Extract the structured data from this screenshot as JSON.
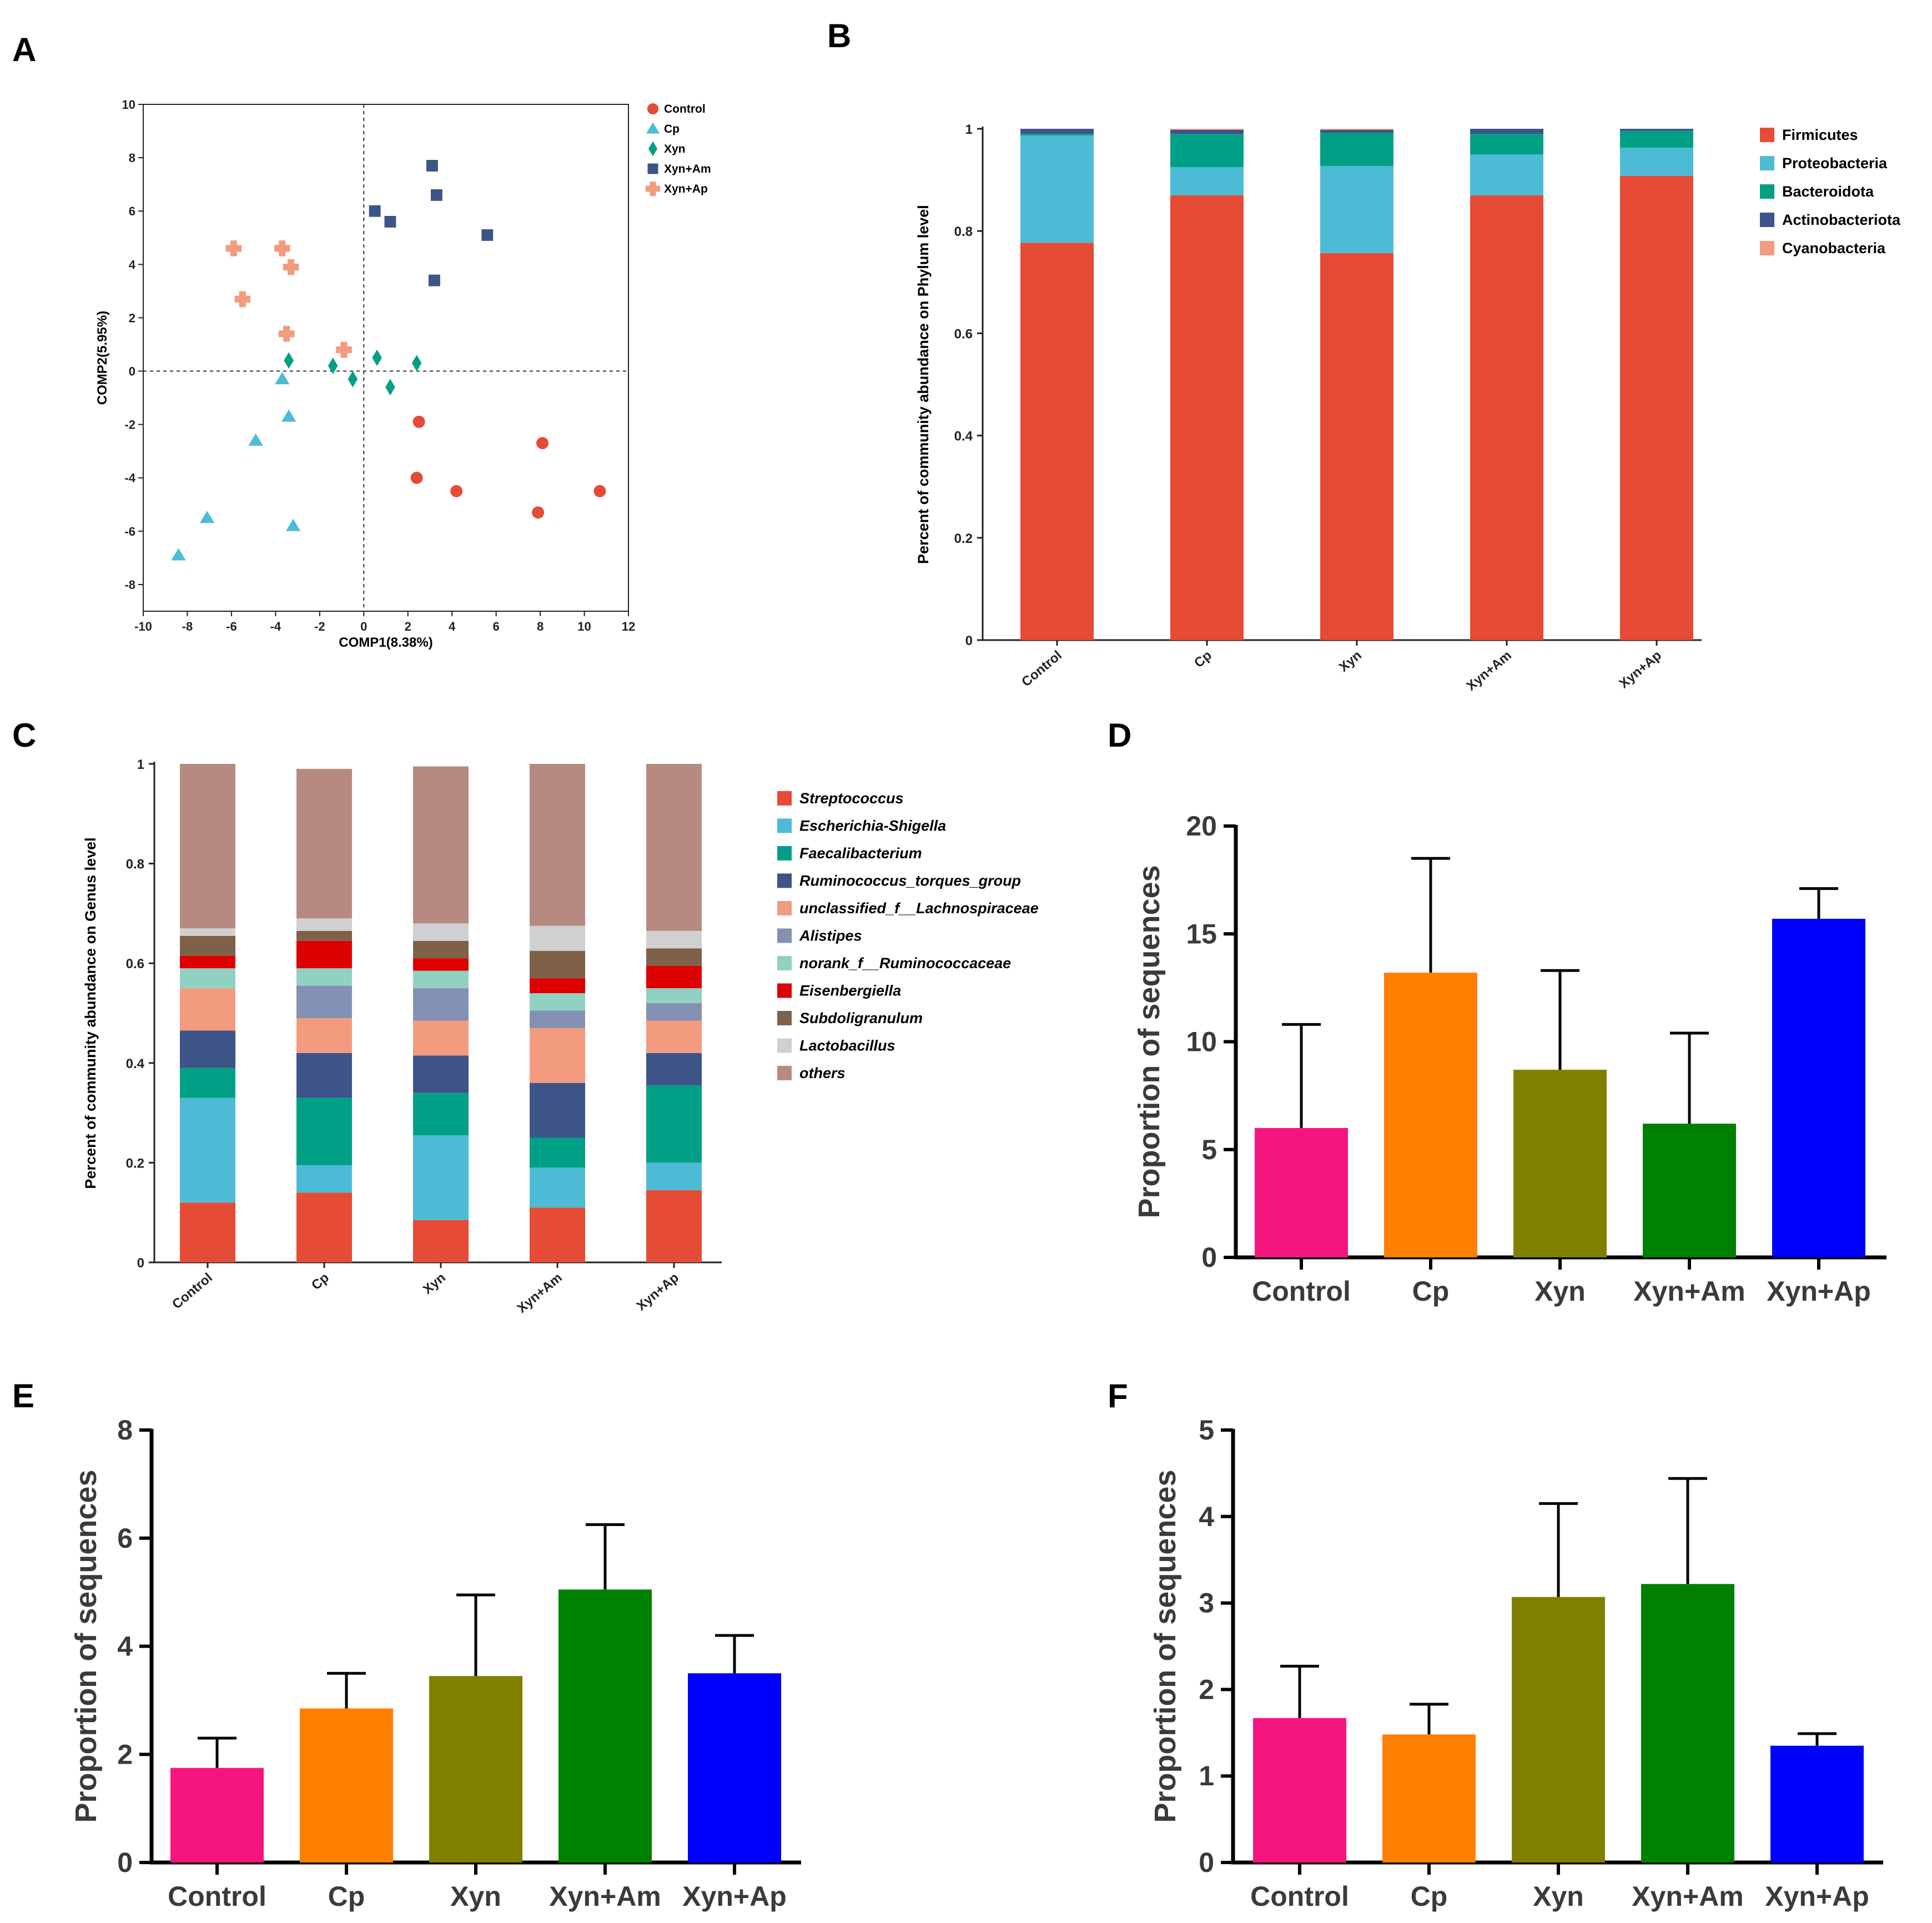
{
  "colors": {
    "control": "#e64b35",
    "cp": "#4dbbd5",
    "xyn": "#00a087",
    "xyn_am": "#3c5488",
    "xyn_ap": "#f39b7f",
    "genus": [
      "#e64b35",
      "#4dbbd5",
      "#00a087",
      "#3c5488",
      "#f39b7f",
      "#8491b4",
      "#91d1c2",
      "#dc0000",
      "#7e6148",
      "#d0d0d0",
      "#b78a81"
    ],
    "bars": [
      "#f5157f",
      "#ff7f00",
      "#808000",
      "#008000",
      "#0000ff"
    ]
  },
  "chart_data": [
    {
      "panel": "A",
      "type": "scatter",
      "xlabel": "COMP1(8.38%)",
      "ylabel": "COMP2(5.95%)",
      "xlim": [
        -10,
        12
      ],
      "ylim": [
        -9,
        10
      ],
      "xticks": [
        -10,
        -8,
        -6,
        -4,
        -2,
        0,
        2,
        4,
        6,
        8,
        10,
        12
      ],
      "yticks": [
        -8,
        -6,
        -4,
        -2,
        0,
        2,
        4,
        6,
        8,
        10
      ],
      "legend_position": "top-right",
      "series": [
        {
          "name": "Control",
          "marker": "circle",
          "x": [
            2.5,
            8.1,
            2.4,
            4.2,
            10.7,
            7.9
          ],
          "y": [
            -1.9,
            -2.7,
            -4.0,
            -4.5,
            -4.5,
            -5.3
          ]
        },
        {
          "name": "Cp",
          "marker": "triangle",
          "x": [
            -3.7,
            -3.4,
            -4.9,
            -7.1,
            -3.2,
            -8.4
          ],
          "y": [
            -0.3,
            -1.7,
            -2.6,
            -5.5,
            -5.8,
            -6.9
          ]
        },
        {
          "name": "Xyn",
          "marker": "diamond",
          "x": [
            -3.4,
            -1.4,
            0.6,
            2.4,
            -0.5,
            1.2
          ],
          "y": [
            0.4,
            0.2,
            0.5,
            0.3,
            -0.3,
            -0.6
          ]
        },
        {
          "name": "Xyn+Am",
          "marker": "square",
          "x": [
            3.1,
            3.3,
            0.5,
            1.2,
            5.6,
            3.2
          ],
          "y": [
            7.7,
            6.6,
            6.0,
            5.6,
            5.1,
            3.4
          ]
        },
        {
          "name": "Xyn+Ap",
          "marker": "cross",
          "x": [
            -5.9,
            -3.7,
            -3.3,
            -5.5,
            -3.5,
            -0.9
          ],
          "y": [
            4.6,
            4.6,
            3.9,
            2.7,
            1.4,
            0.8
          ]
        }
      ]
    },
    {
      "panel": "B",
      "type": "bar",
      "stacked": true,
      "ylabel": "Percent of community abundance on Phylum level",
      "ylim": [
        0,
        1
      ],
      "yticks": [
        0,
        0.2,
        0.4,
        0.6,
        0.8,
        1
      ],
      "categories": [
        "Control",
        "Cp",
        "Xyn",
        "Xyn+Am",
        "Xyn+Ap"
      ],
      "series": [
        {
          "name": "Firmicutes",
          "values": [
            0.777,
            0.87,
            0.757,
            0.87,
            0.908
          ]
        },
        {
          "name": "Proteobacteria",
          "values": [
            0.21,
            0.055,
            0.17,
            0.08,
            0.055
          ]
        },
        {
          "name": "Bacteroidota",
          "values": [
            0.003,
            0.065,
            0.065,
            0.04,
            0.033
          ]
        },
        {
          "name": "Actinobacteriota",
          "values": [
            0.01,
            0.008,
            0.006,
            0.01,
            0.004
          ]
        },
        {
          "name": "Cyanobacteria",
          "values": [
            0.0,
            0.002,
            0.002,
            0.0,
            0.0
          ]
        }
      ]
    },
    {
      "panel": "C",
      "type": "bar",
      "stacked": true,
      "ylabel": "Percent of community abundance on Genus level",
      "ylim": [
        0,
        1
      ],
      "yticks": [
        0,
        0.2,
        0.4,
        0.6,
        0.8,
        1
      ],
      "categories": [
        "Control",
        "Cp",
        "Xyn",
        "Xyn+Am",
        "Xyn+Ap"
      ],
      "series": [
        {
          "name": "Streptococcus",
          "values": [
            0.12,
            0.14,
            0.085,
            0.11,
            0.145
          ]
        },
        {
          "name": "Escherichia-Shigella",
          "values": [
            0.21,
            0.055,
            0.17,
            0.08,
            0.055
          ]
        },
        {
          "name": "Faecalibacterium",
          "values": [
            0.06,
            0.135,
            0.085,
            0.06,
            0.155
          ]
        },
        {
          "name": "Ruminococcus_torques_group",
          "values": [
            0.075,
            0.09,
            0.075,
            0.11,
            0.065
          ]
        },
        {
          "name": "unclassified_f__Lachnospiraceae",
          "values": [
            0.085,
            0.07,
            0.07,
            0.11,
            0.065
          ]
        },
        {
          "name": "Alistipes",
          "values": [
            0.0,
            0.065,
            0.065,
            0.035,
            0.035
          ]
        },
        {
          "name": "norank_f__Ruminococcaceae",
          "values": [
            0.04,
            0.035,
            0.035,
            0.035,
            0.03
          ]
        },
        {
          "name": "Eisenbergiella",
          "values": [
            0.025,
            0.055,
            0.025,
            0.03,
            0.045
          ]
        },
        {
          "name": "Subdoligranulum",
          "values": [
            0.04,
            0.02,
            0.035,
            0.055,
            0.035
          ]
        },
        {
          "name": "Lactobacillus",
          "values": [
            0.015,
            0.025,
            0.035,
            0.05,
            0.035
          ]
        },
        {
          "name": "others",
          "values": [
            0.33,
            0.3,
            0.315,
            0.325,
            0.335
          ]
        }
      ]
    },
    {
      "panel": "D",
      "type": "bar",
      "ylabel": "Proportion of sequences",
      "ylim": [
        0,
        20
      ],
      "yticks": [
        0,
        5,
        10,
        15,
        20
      ],
      "categories": [
        "Control",
        "Cp",
        "Xyn",
        "Xyn+Am",
        "Xyn+Ap"
      ],
      "values": [
        6.0,
        13.2,
        8.7,
        6.2,
        15.7
      ],
      "error": [
        4.8,
        5.3,
        4.6,
        4.2,
        1.4
      ]
    },
    {
      "panel": "E",
      "type": "bar",
      "ylabel": "Proportion of sequences",
      "ylim": [
        0,
        8
      ],
      "yticks": [
        0,
        2,
        4,
        6,
        8
      ],
      "categories": [
        "Control",
        "Cp",
        "Xyn",
        "Xyn+Am",
        "Xyn+Ap"
      ],
      "values": [
        1.75,
        2.85,
        3.45,
        5.05,
        3.5
      ],
      "error": [
        0.55,
        0.65,
        1.5,
        1.2,
        0.7
      ]
    },
    {
      "panel": "F",
      "type": "bar",
      "ylabel": "Proportion of sequences",
      "ylim": [
        0,
        5
      ],
      "yticks": [
        0,
        1,
        2,
        3,
        4,
        5
      ],
      "categories": [
        "Control",
        "Cp",
        "Xyn",
        "Xyn+Am",
        "Xyn+Ap"
      ],
      "values": [
        1.67,
        1.48,
        3.07,
        3.22,
        1.35
      ],
      "error": [
        0.6,
        0.35,
        1.08,
        1.22,
        0.14
      ]
    }
  ]
}
